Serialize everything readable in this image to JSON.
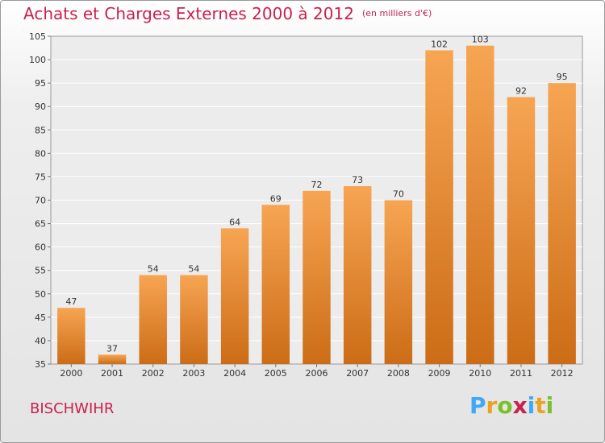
{
  "header": {
    "title": "Achats et Charges Externes 2000 à 2012",
    "subtitle": "(en milliers d'€)"
  },
  "footer": {
    "city": "BISCHWIHR",
    "logo": {
      "letters": [
        "P",
        "r",
        "o",
        "x",
        "i",
        "t",
        "i"
      ],
      "colors": [
        "#3fa9f5",
        "#e9a321",
        "#7bbf2a",
        "#c8224f",
        "#3fa9f5",
        "#e9a321",
        "#7bbf2a"
      ]
    }
  },
  "chart_data": {
    "type": "bar",
    "categories": [
      "2000",
      "2001",
      "2002",
      "2003",
      "2004",
      "2005",
      "2006",
      "2007",
      "2008",
      "2009",
      "2010",
      "2011",
      "2012"
    ],
    "values": [
      47,
      37,
      54,
      54,
      64,
      69,
      72,
      73,
      70,
      102,
      103,
      92,
      95
    ],
    "data_labels": [
      "47",
      "37",
      "54",
      "54",
      "64",
      "69",
      "72",
      "73",
      "70",
      "102",
      "103",
      "92",
      "95"
    ],
    "ylim": [
      35,
      105
    ],
    "yticks": [
      35,
      40,
      45,
      50,
      55,
      60,
      65,
      70,
      75,
      80,
      85,
      90,
      95,
      100,
      105
    ],
    "grid": true,
    "bar_color_top": "#f7a553",
    "bar_color_bottom": "#cc6c16"
  }
}
